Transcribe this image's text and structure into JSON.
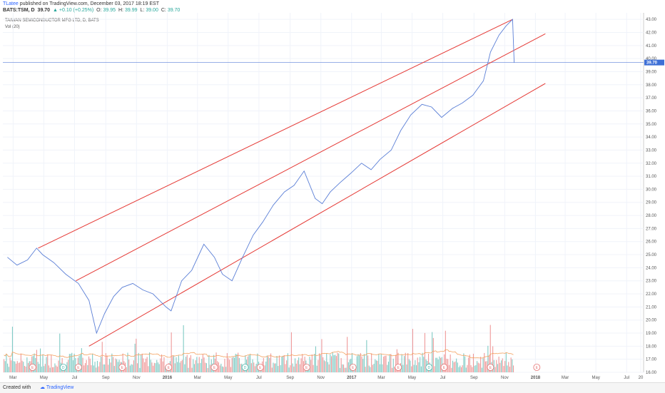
{
  "header": {
    "user": "TLatee",
    "published": "published on TradingView.com, December 03, 2017 18:19 EST",
    "symbol": "BATS:TSM, D",
    "last": "39.70",
    "change": "▲ +0.10 (+0.25%)",
    "o_label": "O:",
    "o_value": "39.95",
    "h_label": "H:",
    "h_value": "39.99",
    "l_label": "L:",
    "l_value": "39.00",
    "c_label": "C:",
    "c_value": "39.70"
  },
  "legend": {
    "instrument": "TAIWAN SEMICONDUCTOR MFG LTD, D, BATS",
    "volume": "Vol (20)"
  },
  "footer": {
    "created_with": "Created with",
    "brand": "TradingView"
  },
  "colors": {
    "price_line": "#5b7fd6",
    "channel": "#e53935",
    "vol_up": "#80cbc4",
    "vol_down": "#ef9a9a",
    "vol_ma": "#f4a261",
    "last_price_bg": "#3d6fd6",
    "hline": "#5b7fd6"
  },
  "chart_data": {
    "type": "line",
    "title": "TAIWAN SEMICONDUCTOR MFG LTD, D, BATS",
    "xlabel": "",
    "ylabel": "",
    "ylim": [
      16.0,
      43.5
    ],
    "y_ticks": [
      "16.00",
      "17.00",
      "18.00",
      "19.00",
      "20.00",
      "21.00",
      "22.00",
      "23.00",
      "24.00",
      "25.00",
      "26.00",
      "27.00",
      "28.00",
      "29.00",
      "30.00",
      "31.00",
      "32.00",
      "33.00",
      "34.00",
      "35.00",
      "36.00",
      "37.00",
      "38.00",
      "39.00",
      "40.00",
      "41.00",
      "42.00",
      "43.00"
    ],
    "x_ticks": [
      "Mar",
      "May",
      "Jul",
      "Sep",
      "Nov",
      "2016",
      "Mar",
      "May",
      "Jul",
      "Sep",
      "Nov",
      "2017",
      "Mar",
      "May",
      "Jul",
      "Sep",
      "Nov",
      "2018",
      "Mar",
      "May",
      "Jul",
      "20"
    ],
    "last_value": "39.70",
    "series": [
      {
        "x": [
          "2015-03-01",
          "2015-03-20",
          "2015-04-10",
          "2015-04-28",
          "2015-05-10",
          "2015-06-01",
          "2015-06-25",
          "2015-07-20",
          "2015-08-10",
          "2015-08-25",
          "2015-09-10",
          "2015-09-28",
          "2015-10-15",
          "2015-11-05",
          "2015-11-25",
          "2015-12-15",
          "2016-01-10",
          "2016-01-20",
          "2016-02-10",
          "2016-03-01",
          "2016-03-25",
          "2016-04-15",
          "2016-05-01",
          "2016-05-20",
          "2016-06-10",
          "2016-07-01",
          "2016-07-20",
          "2016-08-10",
          "2016-09-01",
          "2016-09-20",
          "2016-10-10",
          "2016-11-01",
          "2016-11-15",
          "2016-12-01",
          "2016-12-20",
          "2017-01-10",
          "2017-02-01",
          "2017-02-20",
          "2017-03-10",
          "2017-04-01",
          "2017-04-20",
          "2017-05-10",
          "2017-06-01",
          "2017-06-20",
          "2017-07-10",
          "2017-08-01",
          "2017-08-20",
          "2017-09-10",
          "2017-10-01",
          "2017-10-15",
          "2017-11-01",
          "2017-11-15",
          "2017-11-28",
          "2017-12-01"
        ],
        "values": [
          24.8,
          24.2,
          24.6,
          25.5,
          25.0,
          24.4,
          23.5,
          22.8,
          21.5,
          19.0,
          20.5,
          21.8,
          22.5,
          22.8,
          22.3,
          22.0,
          21.0,
          20.7,
          23.0,
          23.8,
          25.8,
          24.8,
          23.5,
          23.0,
          24.8,
          26.5,
          27.5,
          28.8,
          29.8,
          30.3,
          31.4,
          29.3,
          28.9,
          29.8,
          30.5,
          31.2,
          32.0,
          31.5,
          32.3,
          33.0,
          34.5,
          35.7,
          36.5,
          36.3,
          35.5,
          36.2,
          36.6,
          37.2,
          38.3,
          40.5,
          41.8,
          42.5,
          43.0,
          39.7
        ]
      }
    ],
    "channel_lines": [
      {
        "name": "upper",
        "x": [
          "2015-05-01",
          "2017-11-28"
        ],
        "values": [
          25.5,
          43.0
        ]
      },
      {
        "name": "middle",
        "x": [
          "2015-07-15",
          "2018-02-01"
        ],
        "values": [
          23.0,
          41.9
        ]
      },
      {
        "name": "lower",
        "x": [
          "2015-08-10",
          "2018-02-01"
        ],
        "values": [
          18.0,
          38.1
        ]
      }
    ],
    "volume": {
      "name": "Vol (20)",
      "note_markers": [
        {
          "date": "2015-04-20",
          "label": "E"
        },
        {
          "date": "2015-06-20",
          "label": "D"
        },
        {
          "date": "2015-07-20",
          "label": "E"
        },
        {
          "date": "2015-10-15",
          "label": "E"
        },
        {
          "date": "2016-01-15",
          "label": "E"
        },
        {
          "date": "2016-04-15",
          "label": "E"
        },
        {
          "date": "2016-06-15",
          "label": "D"
        },
        {
          "date": "2016-07-15",
          "label": "E"
        },
        {
          "date": "2016-10-15",
          "label": "E"
        },
        {
          "date": "2017-01-15",
          "label": "E"
        },
        {
          "date": "2017-04-15",
          "label": "E"
        },
        {
          "date": "2017-06-15",
          "label": "D"
        },
        {
          "date": "2017-07-15",
          "label": "E"
        },
        {
          "date": "2017-10-15",
          "label": "E"
        },
        {
          "date": "2018-01-15",
          "label": "E"
        }
      ]
    },
    "grid": true
  }
}
